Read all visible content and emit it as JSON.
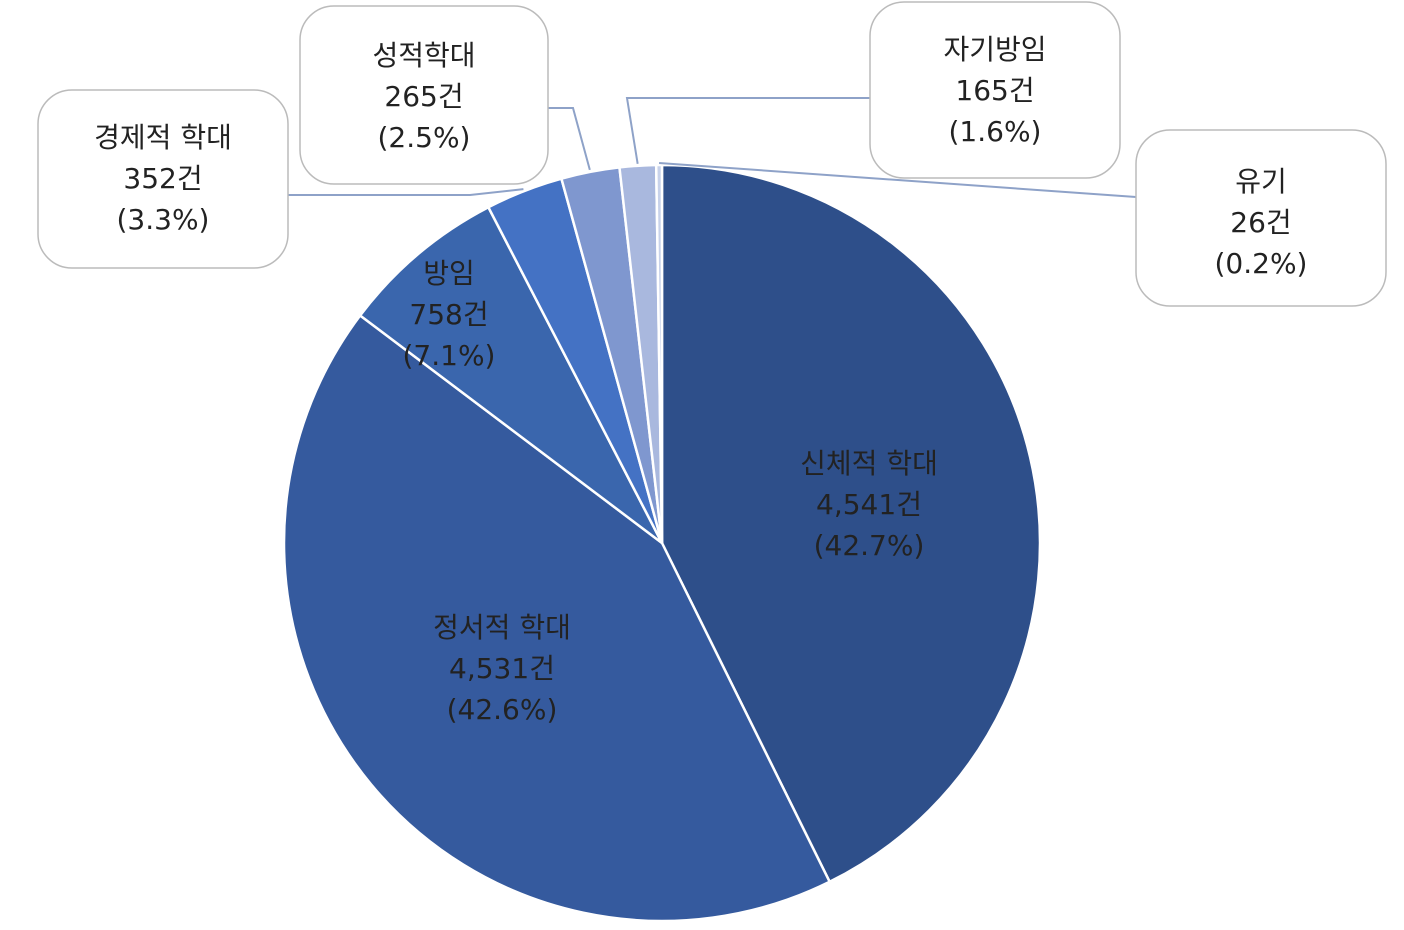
{
  "chart_data": {
    "type": "pie",
    "categories": [
      "신체적 학대",
      "정서적 학대",
      "방임",
      "경제적 학대",
      "성적학대",
      "자기방임",
      "유기"
    ],
    "values": [
      4541,
      4531,
      758,
      352,
      265,
      165,
      26
    ],
    "value_labels": [
      "4,541건",
      "4,531건",
      "758건",
      "352건",
      "265건",
      "165건",
      "26건"
    ],
    "percents": [
      42.7,
      42.6,
      7.1,
      3.3,
      2.5,
      1.6,
      0.2
    ],
    "percent_labels": [
      "(42.7%)",
      "(42.6%)",
      "(7.1%)",
      "(3.3%)",
      "(2.5%)",
      "(1.6%)",
      "(0.2%)"
    ],
    "colors": [
      "#2e4f8a",
      "#355a9e",
      "#3a66ad",
      "#4472c4",
      "#7f97cf",
      "#a9b8de",
      "#c8d2ea"
    ]
  }
}
